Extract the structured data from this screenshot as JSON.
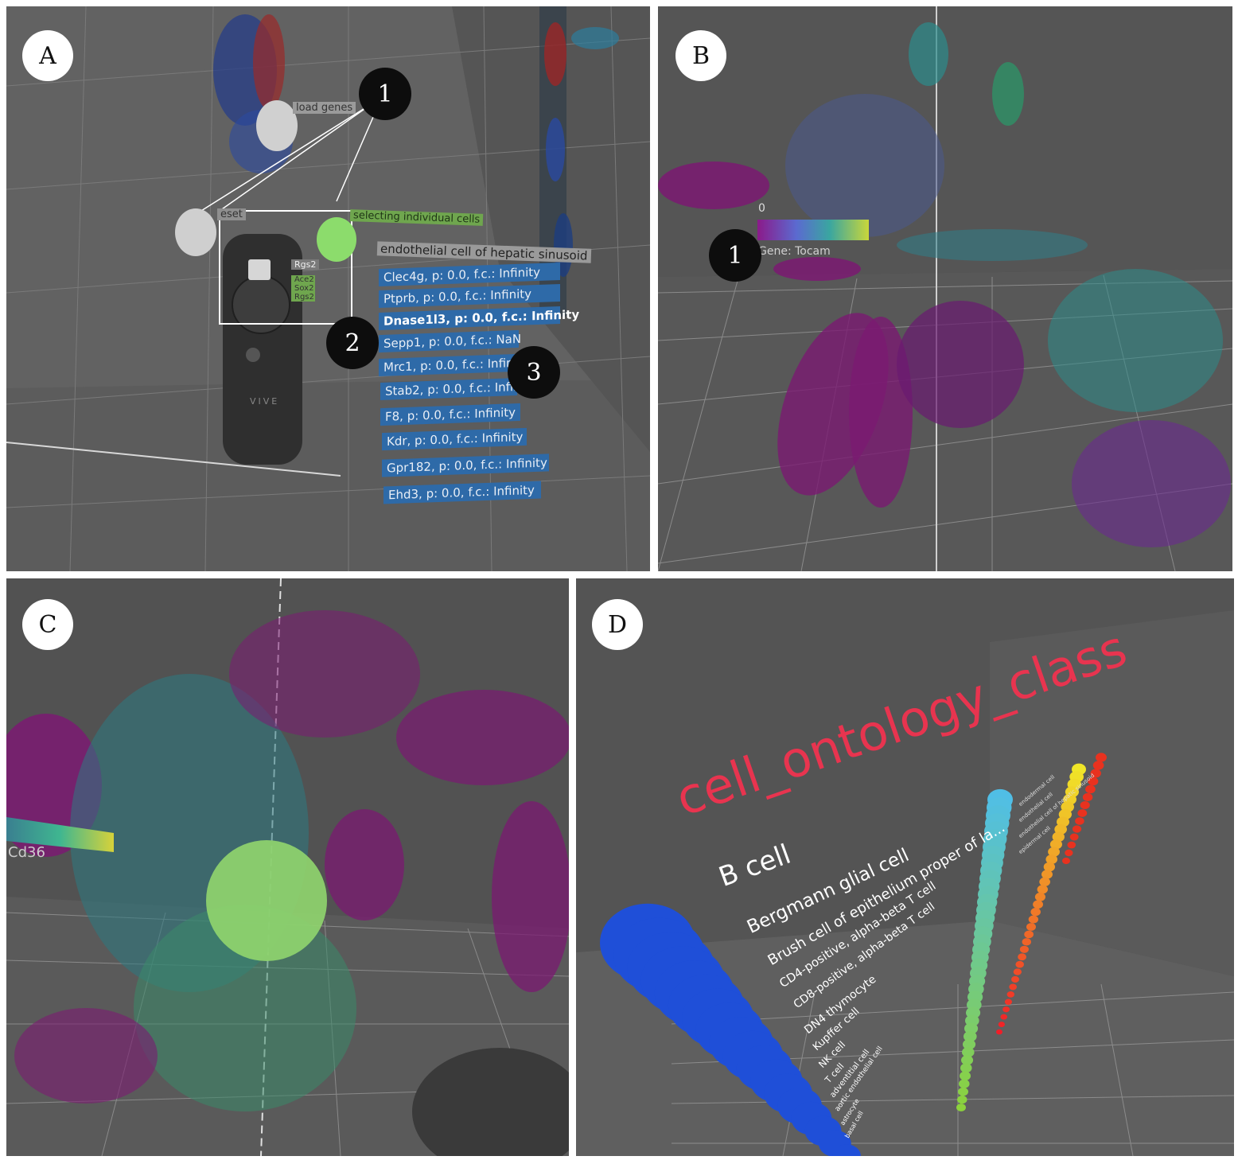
{
  "panels": {
    "A": {
      "label": "A",
      "markers": [
        "1",
        "2",
        "3"
      ],
      "tags": {
        "load_genes": "load genes",
        "reset": "eset",
        "selecting": "selecting individual cells",
        "list_header": "endothelial cell of hepatic sinusoid",
        "controller_gene_header": "Rgs2",
        "controller_genes": [
          "Ace2",
          "Sox2",
          "Rgs2"
        ],
        "vive": "VIVE"
      },
      "gene_list": [
        "Clec4g, p: 0.0, f.c.: Infinity",
        "Ptprb, p: 0.0, f.c.: Infinity",
        "Dnase1l3, p: 0.0, f.c.: Infinity",
        "Sepp1, p: 0.0, f.c.: NaN",
        "Mrc1, p: 0.0, f.c.: Infin",
        "Stab2, p: 0.0, f.c.: Infin",
        "F8, p: 0.0, f.c.: Infinity",
        "Kdr, p: 0.0, f.c.: Infinity",
        "Gpr182, p: 0.0, f.c.: Infinity",
        "Ehd3, p: 0.0, f.c.: Infinity"
      ],
      "selected_index": 2
    },
    "B": {
      "label": "B",
      "marker": "1",
      "legend_min": "0",
      "gene_label": "Gene: Tocam"
    },
    "C": {
      "label": "C",
      "gene_label": "Cd36"
    },
    "D": {
      "label": "D",
      "title": "cell_ontology_class",
      "cell_types": [
        "B cell",
        "Bergmann glial cell",
        "Brush cell of epithelium proper of la...",
        "CD4-positive, alpha-beta T cell",
        "CD8-positive, alpha-beta T cell",
        "DN4 thymocyte",
        "Kupffer cell",
        "NK cell",
        "T cell",
        "adventitial cell",
        "aortic endothelial cell",
        "astrocyte",
        "basal cell"
      ],
      "side_labels": [
        "endodermal cell",
        "endothelial cell",
        "endothelial cell of hepatic sinusoid",
        "epidermal cell"
      ]
    }
  },
  "colors": {
    "floor": "#5a5a5a",
    "gene_list_bg": "#2e6aa8",
    "green_highlight": "#6fbf4a",
    "title_red": "#e8344f",
    "magenta_cells": "#7b1a72"
  }
}
